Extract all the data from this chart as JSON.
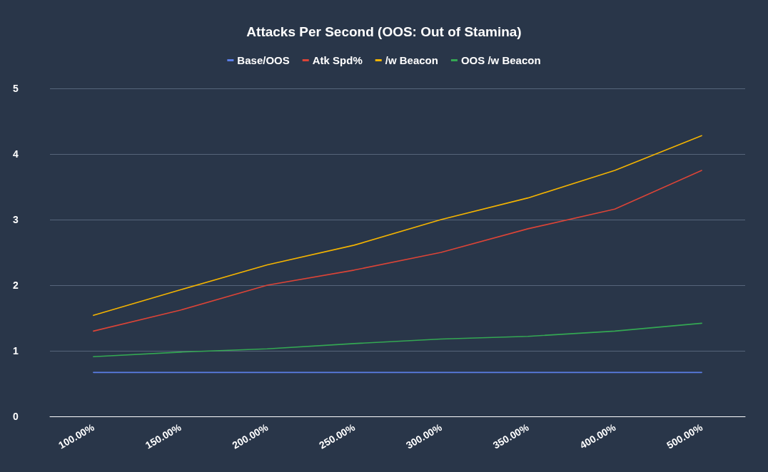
{
  "chart_data": {
    "type": "line",
    "title": "Attacks Per Second (OOS: Out of Stamina)",
    "categories": [
      "100.00%",
      "150.00%",
      "200.00%",
      "250.00%",
      "300.00%",
      "350.00%",
      "400.00%",
      "500.00%"
    ],
    "series": [
      {
        "name": "Base/OOS",
        "color": "#5b7fe8",
        "values": [
          0.67,
          0.67,
          0.67,
          0.67,
          0.67,
          0.67,
          0.67,
          0.67
        ]
      },
      {
        "name": "Atk Spd%",
        "color": "#db4437",
        "values": [
          1.3,
          1.62,
          2.0,
          2.23,
          2.5,
          2.86,
          3.16,
          3.75
        ]
      },
      {
        "name": "/w Beacon",
        "color": "#f4b400",
        "values": [
          1.54,
          1.93,
          2.31,
          2.61,
          3.0,
          3.33,
          3.75,
          4.28
        ]
      },
      {
        "name": "OOS /w Beacon",
        "color": "#34a853",
        "values": [
          0.91,
          0.98,
          1.03,
          1.11,
          1.18,
          1.22,
          1.3,
          1.42
        ]
      }
    ],
    "ylim": [
      0,
      5
    ],
    "yticks": [
      0,
      1,
      2,
      3,
      4,
      5
    ],
    "grid": "y",
    "legend": "top",
    "marker": "none",
    "line_style": "solid"
  }
}
